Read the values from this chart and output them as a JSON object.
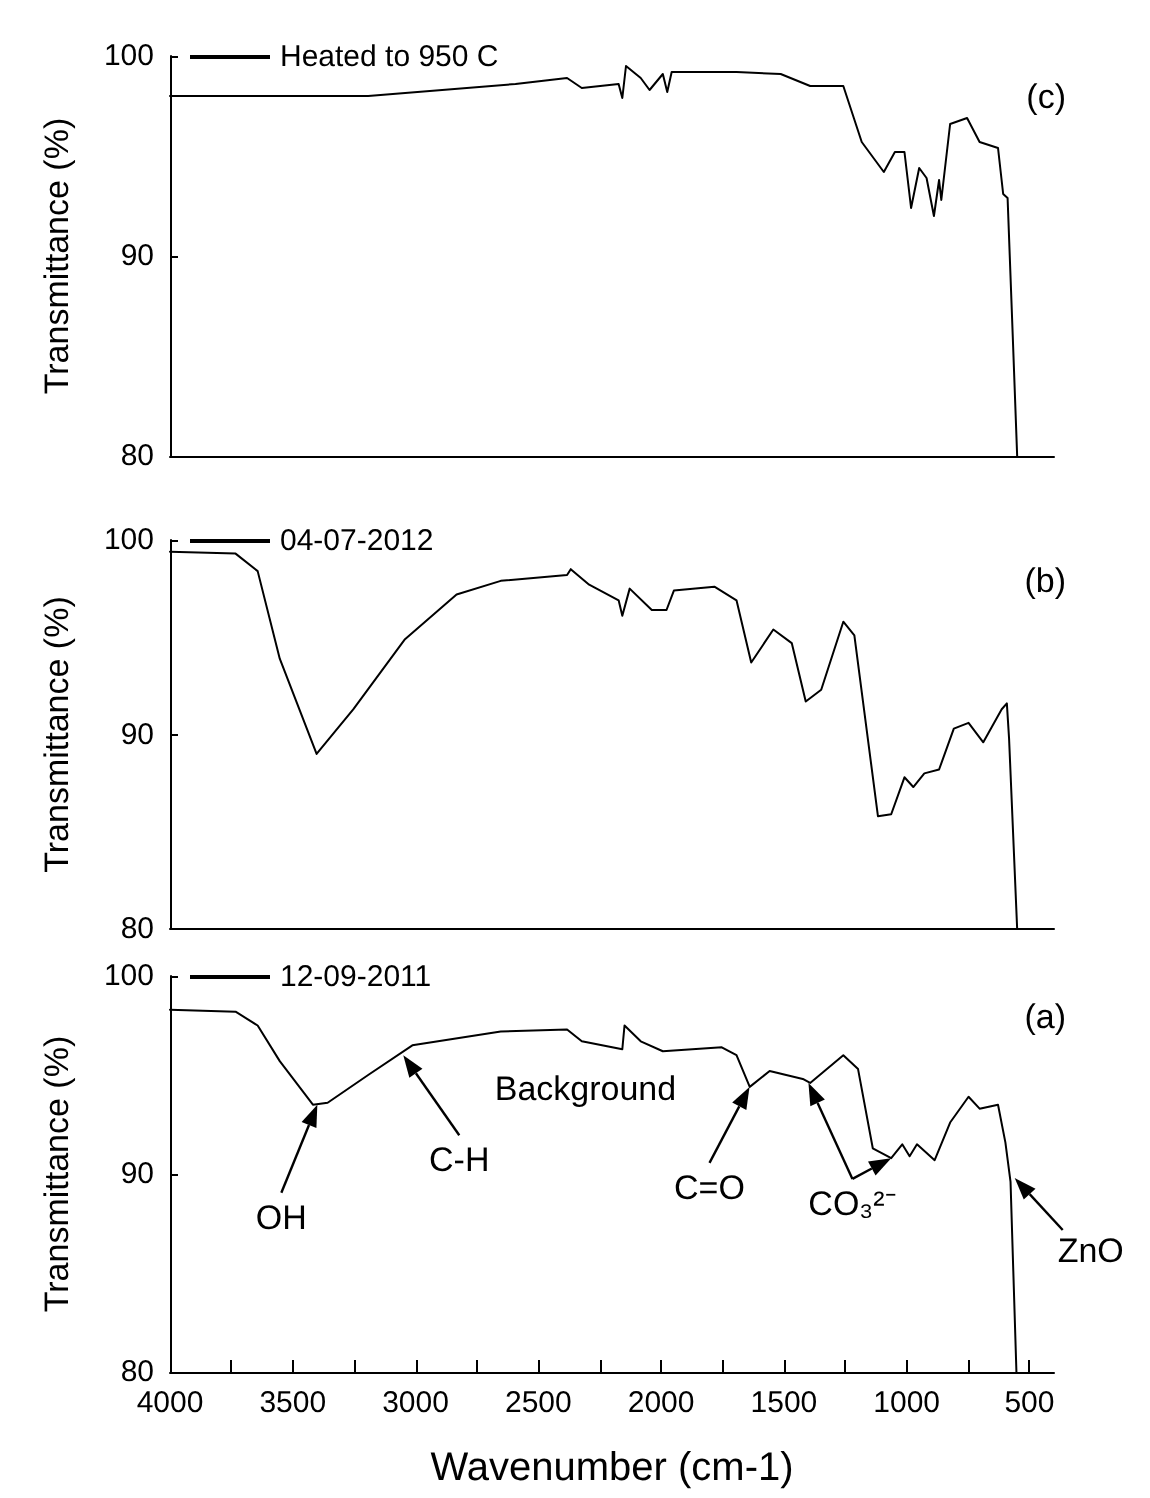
{
  "chart_data": [
    {
      "type": "line",
      "ylabel": "Transmittance (%)",
      "xlim": [
        4000,
        400
      ],
      "ylim": [
        80,
        100
      ],
      "yticks": [
        80,
        90,
        100
      ],
      "tick_labels": "y",
      "legend": "top left",
      "grid": false,
      "marker": "none",
      "line_style": "solid",
      "annotations": [
        "(c)"
      ],
      "series": [
        {
          "name": "Heated to 950 C",
          "color": "#000000",
          "x": [
            4000,
            3193,
            2593,
            2383,
            2323,
            2173,
            2158,
            2143,
            2083,
            2047,
            1993,
            1975,
            1957,
            1693,
            1513,
            1393,
            1258,
            1183,
            1093,
            1048,
            1009,
            982,
            949,
            919,
            889,
            868,
            859,
            823,
            754,
            703,
            628,
            607,
            589,
            568,
            550
          ],
          "values": [
            98.0,
            98.0,
            98.6,
            98.9,
            98.4,
            98.6,
            97.9,
            99.5,
            98.9,
            98.3,
            99.1,
            98.2,
            99.2,
            99.2,
            99.1,
            98.5,
            98.5,
            95.7,
            94.2,
            95.2,
            95.2,
            92.4,
            94.4,
            93.9,
            92.0,
            93.8,
            92.8,
            96.6,
            96.9,
            95.7,
            95.4,
            93.1,
            92.9,
            86.0,
            80.0
          ]
        }
      ]
    },
    {
      "type": "line",
      "ylabel": "Transmittance (%)",
      "xlim": [
        4000,
        400
      ],
      "ylim": [
        80,
        100
      ],
      "yticks": [
        80,
        90,
        100
      ],
      "tick_labels": "y",
      "legend": "top left",
      "grid": false,
      "marker": "none",
      "line_style": "solid",
      "annotations": [
        "(b)"
      ],
      "series": [
        {
          "name": "04-07-2012",
          "color": "#000000",
          "x": [
            4000,
            3733,
            3643,
            3553,
            3403,
            3253,
            3043,
            2833,
            2653,
            2383,
            2368,
            2293,
            2173,
            2158,
            2128,
            2038,
            1978,
            1948,
            1783,
            1693,
            1633,
            1543,
            1468,
            1411,
            1348,
            1258,
            1213,
            1117,
            1063,
            1009,
            973,
            928,
            868,
            808,
            748,
            688,
            613,
            592,
            583,
            550
          ],
          "values": [
            99.4,
            99.3,
            98.4,
            93.9,
            89.0,
            91.3,
            94.9,
            97.2,
            97.9,
            98.2,
            98.5,
            97.7,
            96.9,
            96.1,
            97.5,
            96.4,
            96.4,
            97.4,
            97.6,
            96.9,
            93.7,
            95.4,
            94.7,
            91.7,
            92.3,
            95.8,
            95.1,
            85.8,
            85.9,
            87.8,
            87.3,
            88.0,
            88.2,
            90.3,
            90.6,
            89.6,
            91.3,
            91.6,
            89.8,
            80.0
          ]
        }
      ]
    },
    {
      "type": "line",
      "xlabel": "Wavenumber (cm-1)",
      "ylabel": "Transmittance (%)",
      "xlim": [
        4000,
        400
      ],
      "xticks": [
        4000,
        {
          "value": 3750,
          "label": null
        },
        3500,
        {
          "value": 3250,
          "label": null
        },
        3000,
        {
          "value": 2750,
          "label": null
        },
        2500,
        {
          "value": 2250,
          "label": null
        },
        2000,
        {
          "value": 1750,
          "label": null
        },
        1500,
        {
          "value": 1250,
          "label": null
        },
        1000,
        {
          "value": 750,
          "label": null
        },
        500
      ],
      "ylim": [
        80,
        100
      ],
      "yticks": [
        80,
        90,
        100
      ],
      "legend": "top left",
      "grid": false,
      "marker": "none",
      "line_style": "solid",
      "annotations": [
        "(a)",
        "Background",
        {
          "text": "OH",
          "x": 3400,
          "y": 93.5
        },
        {
          "text": "C-H",
          "x": 3050,
          "y": 96.0
        },
        {
          "text": "C=O",
          "x": 1640,
          "y": 94.4
        },
        {
          "text": "CO₃²⁻",
          "x": 1400,
          "y": 94.6
        },
        {
          "text": "ZnO",
          "x": 560,
          "y": 89.8
        }
      ],
      "series": [
        {
          "name": "12-09-2011",
          "color": "#000000",
          "x": [
            4000,
            3733,
            3643,
            3553,
            3418,
            3358,
            3193,
            3013,
            2653,
            2383,
            2323,
            2158,
            2149,
            2083,
            1993,
            1753,
            1693,
            1639,
            1558,
            1423,
            1393,
            1258,
            1198,
            1138,
            1063,
            1018,
            988,
            958,
            886,
            823,
            748,
            703,
            628,
            598,
            577,
            553
          ],
          "values": [
            98.3,
            98.2,
            97.5,
            95.7,
            93.5,
            93.6,
            95.0,
            96.5,
            97.2,
            97.3,
            96.7,
            96.3,
            97.5,
            96.7,
            96.2,
            96.4,
            96.0,
            94.4,
            95.2,
            94.8,
            94.6,
            96.0,
            95.3,
            91.3,
            90.8,
            91.5,
            90.9,
            91.5,
            90.7,
            92.6,
            93.9,
            93.3,
            93.5,
            91.6,
            89.6,
            80.0
          ]
        }
      ]
    }
  ]
}
